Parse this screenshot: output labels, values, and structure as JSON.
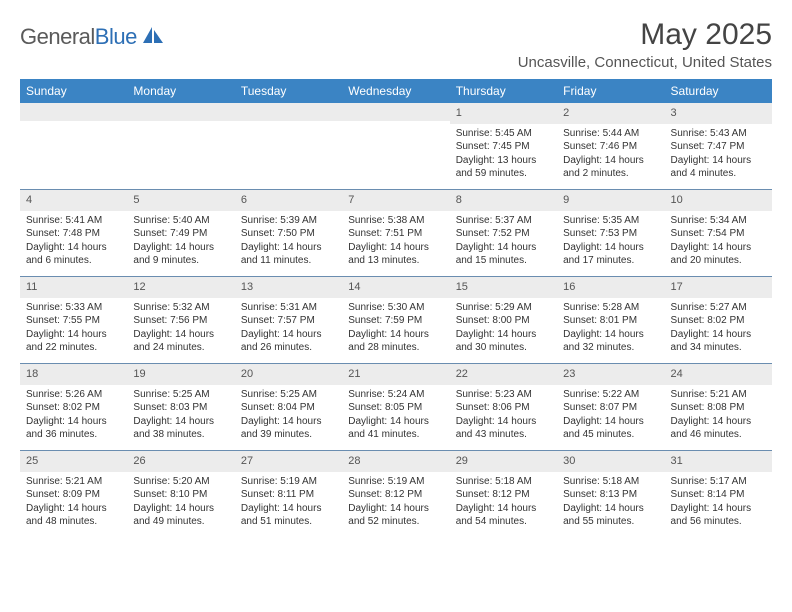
{
  "logo": {
    "text1": "General",
    "text2": "Blue"
  },
  "title": "May 2025",
  "location": "Uncasville, Connecticut, United States",
  "colors": {
    "header_bg": "#3b84c4",
    "daynum_bg": "#ececec",
    "week_border": "#6a8db0",
    "logo_blue": "#2d6fb5"
  },
  "weekdays": [
    "Sunday",
    "Monday",
    "Tuesday",
    "Wednesday",
    "Thursday",
    "Friday",
    "Saturday"
  ],
  "weeks": [
    [
      null,
      null,
      null,
      null,
      {
        "n": "1",
        "sr": "5:45 AM",
        "ss": "7:45 PM",
        "dl": "13 hours and 59 minutes."
      },
      {
        "n": "2",
        "sr": "5:44 AM",
        "ss": "7:46 PM",
        "dl": "14 hours and 2 minutes."
      },
      {
        "n": "3",
        "sr": "5:43 AM",
        "ss": "7:47 PM",
        "dl": "14 hours and 4 minutes."
      }
    ],
    [
      {
        "n": "4",
        "sr": "5:41 AM",
        "ss": "7:48 PM",
        "dl": "14 hours and 6 minutes."
      },
      {
        "n": "5",
        "sr": "5:40 AM",
        "ss": "7:49 PM",
        "dl": "14 hours and 9 minutes."
      },
      {
        "n": "6",
        "sr": "5:39 AM",
        "ss": "7:50 PM",
        "dl": "14 hours and 11 minutes."
      },
      {
        "n": "7",
        "sr": "5:38 AM",
        "ss": "7:51 PM",
        "dl": "14 hours and 13 minutes."
      },
      {
        "n": "8",
        "sr": "5:37 AM",
        "ss": "7:52 PM",
        "dl": "14 hours and 15 minutes."
      },
      {
        "n": "9",
        "sr": "5:35 AM",
        "ss": "7:53 PM",
        "dl": "14 hours and 17 minutes."
      },
      {
        "n": "10",
        "sr": "5:34 AM",
        "ss": "7:54 PM",
        "dl": "14 hours and 20 minutes."
      }
    ],
    [
      {
        "n": "11",
        "sr": "5:33 AM",
        "ss": "7:55 PM",
        "dl": "14 hours and 22 minutes."
      },
      {
        "n": "12",
        "sr": "5:32 AM",
        "ss": "7:56 PM",
        "dl": "14 hours and 24 minutes."
      },
      {
        "n": "13",
        "sr": "5:31 AM",
        "ss": "7:57 PM",
        "dl": "14 hours and 26 minutes."
      },
      {
        "n": "14",
        "sr": "5:30 AM",
        "ss": "7:59 PM",
        "dl": "14 hours and 28 minutes."
      },
      {
        "n": "15",
        "sr": "5:29 AM",
        "ss": "8:00 PM",
        "dl": "14 hours and 30 minutes."
      },
      {
        "n": "16",
        "sr": "5:28 AM",
        "ss": "8:01 PM",
        "dl": "14 hours and 32 minutes."
      },
      {
        "n": "17",
        "sr": "5:27 AM",
        "ss": "8:02 PM",
        "dl": "14 hours and 34 minutes."
      }
    ],
    [
      {
        "n": "18",
        "sr": "5:26 AM",
        "ss": "8:02 PM",
        "dl": "14 hours and 36 minutes."
      },
      {
        "n": "19",
        "sr": "5:25 AM",
        "ss": "8:03 PM",
        "dl": "14 hours and 38 minutes."
      },
      {
        "n": "20",
        "sr": "5:25 AM",
        "ss": "8:04 PM",
        "dl": "14 hours and 39 minutes."
      },
      {
        "n": "21",
        "sr": "5:24 AM",
        "ss": "8:05 PM",
        "dl": "14 hours and 41 minutes."
      },
      {
        "n": "22",
        "sr": "5:23 AM",
        "ss": "8:06 PM",
        "dl": "14 hours and 43 minutes."
      },
      {
        "n": "23",
        "sr": "5:22 AM",
        "ss": "8:07 PM",
        "dl": "14 hours and 45 minutes."
      },
      {
        "n": "24",
        "sr": "5:21 AM",
        "ss": "8:08 PM",
        "dl": "14 hours and 46 minutes."
      }
    ],
    [
      {
        "n": "25",
        "sr": "5:21 AM",
        "ss": "8:09 PM",
        "dl": "14 hours and 48 minutes."
      },
      {
        "n": "26",
        "sr": "5:20 AM",
        "ss": "8:10 PM",
        "dl": "14 hours and 49 minutes."
      },
      {
        "n": "27",
        "sr": "5:19 AM",
        "ss": "8:11 PM",
        "dl": "14 hours and 51 minutes."
      },
      {
        "n": "28",
        "sr": "5:19 AM",
        "ss": "8:12 PM",
        "dl": "14 hours and 52 minutes."
      },
      {
        "n": "29",
        "sr": "5:18 AM",
        "ss": "8:12 PM",
        "dl": "14 hours and 54 minutes."
      },
      {
        "n": "30",
        "sr": "5:18 AM",
        "ss": "8:13 PM",
        "dl": "14 hours and 55 minutes."
      },
      {
        "n": "31",
        "sr": "5:17 AM",
        "ss": "8:14 PM",
        "dl": "14 hours and 56 minutes."
      }
    ]
  ],
  "labels": {
    "sunrise": "Sunrise:",
    "sunset": "Sunset:",
    "daylight": "Daylight:"
  }
}
